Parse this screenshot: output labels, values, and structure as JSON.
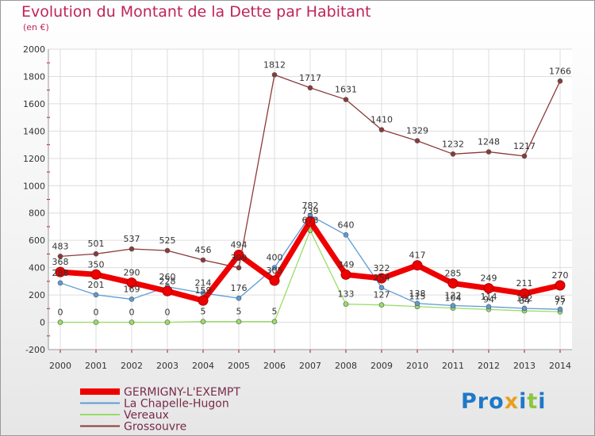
{
  "title": "Evolution du Montant de la Dette par Habitant",
  "unit": "(en €)",
  "logo": {
    "text": "Proxiti",
    "letter_colors": [
      "#1e78c8",
      "#1e78c8",
      "#1e78c8",
      "#e8a020",
      "#1e78c8",
      "#8cc63f",
      "#1e78c8"
    ]
  },
  "chart_data": {
    "type": "line",
    "x": [
      "2000",
      "2001",
      "2002",
      "2003",
      "2004",
      "2005",
      "2006",
      "2007",
      "2008",
      "2009",
      "2010",
      "2011",
      "2012",
      "2013",
      "2014"
    ],
    "ylim": [
      -200,
      2000
    ],
    "yticks": [
      "-200",
      "0",
      "200",
      "400",
      "600",
      "800",
      "1000",
      "1200",
      "1400",
      "1600",
      "1800",
      "2000"
    ],
    "grid": true,
    "legend_position": "bottom-left",
    "series": [
      {
        "name": "GERMIGNY-L'EXEMPT",
        "color": "#ee0000",
        "values": [
          368,
          350,
          290,
          228,
          159,
          494,
          305,
          739,
          349,
          322,
          417,
          285,
          249,
          211,
          270
        ],
        "labels": [
          "368",
          "350",
          "290",
          "228",
          "159",
          "494",
          "305",
          "739",
          "349",
          "322",
          "417",
          "285",
          "249",
          "211",
          "270"
        ]
      },
      {
        "name": "La Chapelle-Hugon",
        "color": "#5b9bd5",
        "values": [
          288,
          201,
          169,
          260,
          214,
          176,
          400,
          782,
          640,
          254,
          138,
          122,
          114,
          102,
          95
        ],
        "labels": [
          "288",
          "201",
          "169",
          "260",
          "214",
          "176",
          "400",
          "782",
          "640",
          "254",
          "138",
          "122",
          "114",
          "102",
          "95"
        ]
      },
      {
        "name": "Vereaux",
        "color": "#99dd66",
        "values": [
          0,
          0,
          0,
          0,
          5,
          5,
          5,
          673,
          133,
          127,
          115,
          104,
          94,
          84,
          77
        ],
        "labels": [
          "0",
          "0",
          "0",
          "0",
          "5",
          "5",
          "5",
          "673",
          "133",
          "127",
          "115",
          "104",
          "94",
          "84",
          "77"
        ]
      },
      {
        "name": "Grossouvre",
        "color": "#8b3a3a",
        "values": [
          483,
          501,
          537,
          525,
          456,
          399,
          1812,
          1717,
          1631,
          1410,
          1329,
          1232,
          1248,
          1217,
          1766
        ],
        "labels": [
          "483",
          "501",
          "537",
          "525",
          "456",
          "399",
          "1812",
          "1717",
          "1631",
          "1410",
          "1329",
          "1232",
          "1248",
          "1217",
          "1766"
        ]
      }
    ]
  }
}
